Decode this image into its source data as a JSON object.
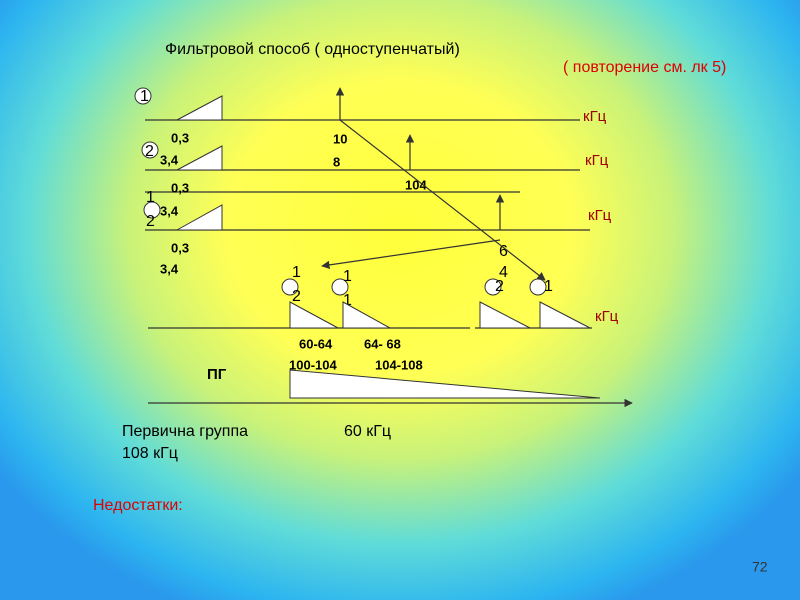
{
  "header": {
    "title": "Фильтровой  способ ( одноступенчатый)",
    "note": "( повторение см. лк 5)"
  },
  "rows": [
    {
      "channel": "1",
      "unit": "кГц"
    },
    {
      "channel": "2",
      "low": "0,3",
      "high": "3,4",
      "unit": "кГц",
      "carrier_top": "10",
      "carrier_bottom": "8"
    },
    {
      "channel_top": "1",
      "channel_bottom": "2",
      "low": "0,3",
      "high": "3,4",
      "unit": "кГц",
      "carrier": "104"
    },
    {
      "low": "0,3",
      "high": "3,4",
      "carrier_top": "6",
      "carrier_bottom": "4"
    }
  ],
  "output": {
    "unit": "кГц",
    "channels": [
      {
        "top": "1",
        "bottom": "2"
      },
      {
        "top": "1",
        "bottom": "1"
      },
      {
        "top": "2"
      },
      {
        "top": "1"
      }
    ],
    "bands": [
      "60-64",
      "64- 68",
      "100-104",
      "104-108"
    ],
    "group": "ПГ"
  },
  "footer": {
    "group_label": "Первична  группа",
    "group_low": "60 кГц",
    "group_high": "108 кГц",
    "drawbacks": "Недостатки:",
    "page_number": "72"
  }
}
